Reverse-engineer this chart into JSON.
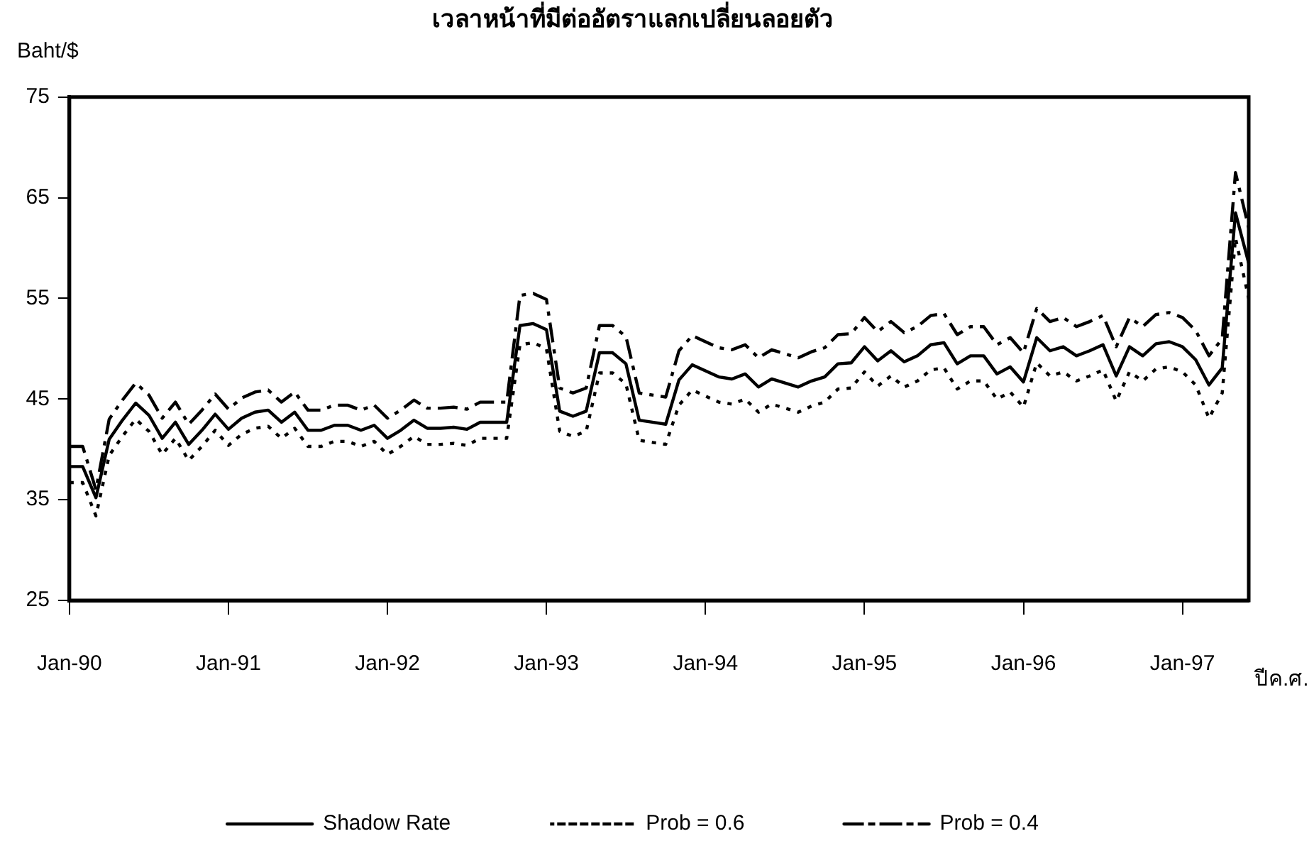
{
  "chart_data": {
    "type": "line",
    "title": "เวลาหน้าที่มีต่ออัตราแลกเปลี่ยนลอยตัว",
    "ylabel": "Baht/$",
    "xlabel": "ปีค.ศ.",
    "x": [
      "1990-01",
      "1990-02",
      "1990-03",
      "1990-04",
      "1990-05",
      "1990-06",
      "1990-07",
      "1990-08",
      "1990-09",
      "1990-10",
      "1990-11",
      "1990-12",
      "1991-01",
      "1991-02",
      "1991-03",
      "1991-04",
      "1991-05",
      "1991-06",
      "1991-07",
      "1991-08",
      "1991-09",
      "1991-10",
      "1991-11",
      "1991-12",
      "1992-01",
      "1992-02",
      "1992-03",
      "1992-04",
      "1992-05",
      "1992-06",
      "1992-07",
      "1992-08",
      "1992-09",
      "1992-10",
      "1992-11",
      "1992-12",
      "1993-01",
      "1993-02",
      "1993-03",
      "1993-04",
      "1993-05",
      "1993-06",
      "1993-07",
      "1993-08",
      "1993-09",
      "1993-10",
      "1993-11",
      "1993-12",
      "1994-01",
      "1994-02",
      "1994-03",
      "1994-04",
      "1994-05",
      "1994-06",
      "1994-07",
      "1994-08",
      "1994-09",
      "1994-10",
      "1994-11",
      "1994-12",
      "1995-01",
      "1995-02",
      "1995-03",
      "1995-04",
      "1995-05",
      "1995-06",
      "1995-07",
      "1995-08",
      "1995-09",
      "1995-10",
      "1995-11",
      "1995-12",
      "1996-01",
      "1996-02",
      "1996-03",
      "1996-04",
      "1996-05",
      "1996-06",
      "1996-07",
      "1996-08",
      "1996-09",
      "1996-10",
      "1996-11",
      "1996-12",
      "1997-01",
      "1997-02",
      "1997-03",
      "1997-04",
      "1997-05",
      "1997-06"
    ],
    "series": [
      {
        "name": "Shadow Rate",
        "color": "#000000",
        "line_style": "solid",
        "values": [
          38.3,
          38.3,
          35.2,
          41.0,
          42.9,
          44.6,
          43.4,
          41.1,
          42.7,
          40.5,
          41.9,
          43.5,
          42.0,
          43.1,
          43.7,
          43.9,
          42.7,
          43.7,
          41.9,
          41.9,
          42.4,
          42.4,
          41.9,
          42.4,
          41.1,
          41.9,
          42.9,
          42.1,
          42.1,
          42.2,
          42.0,
          42.7,
          42.7,
          42.7,
          52.3,
          52.5,
          51.9,
          43.8,
          43.3,
          43.8,
          49.6,
          49.6,
          48.5,
          42.9,
          42.7,
          42.5,
          46.9,
          48.4,
          47.8,
          47.2,
          47.0,
          47.5,
          46.2,
          47.0,
          46.6,
          46.2,
          46.8,
          47.2,
          48.5,
          48.6,
          50.2,
          48.8,
          49.8,
          48.7,
          49.3,
          50.4,
          50.6,
          48.5,
          49.3,
          49.3,
          47.5,
          48.2,
          46.7,
          51.1,
          49.8,
          50.2,
          49.3,
          49.8,
          50.4,
          47.3,
          50.2,
          49.3,
          50.5,
          50.7,
          50.2,
          48.9,
          46.4,
          48.1,
          63.5,
          58.5
        ]
      },
      {
        "name": "Prob = 0.6",
        "color": "#000000",
        "line_style": "dotted",
        "values": [
          36.7,
          36.7,
          33.4,
          39.4,
          41.3,
          43.0,
          41.8,
          39.5,
          41.1,
          38.9,
          40.3,
          41.9,
          40.4,
          41.5,
          42.1,
          42.3,
          41.1,
          42.1,
          40.3,
          40.3,
          40.8,
          40.8,
          40.3,
          40.8,
          39.5,
          40.3,
          41.3,
          40.5,
          40.5,
          40.6,
          40.4,
          41.1,
          41.1,
          41.1,
          50.4,
          50.6,
          50.0,
          41.8,
          41.3,
          41.8,
          47.6,
          47.6,
          46.5,
          40.9,
          40.7,
          40.5,
          44.4,
          45.9,
          45.3,
          44.7,
          44.5,
          45.0,
          43.7,
          44.5,
          44.1,
          43.7,
          44.3,
          44.7,
          46.0,
          46.1,
          47.7,
          46.3,
          47.3,
          46.2,
          46.8,
          47.9,
          48.1,
          46.0,
          46.8,
          46.8,
          45.0,
          45.7,
          44.2,
          48.6,
          47.3,
          47.7,
          46.8,
          47.3,
          47.9,
          44.8,
          47.7,
          46.8,
          48.0,
          48.2,
          47.7,
          46.4,
          43.1,
          45.6,
          61.0,
          55.0
        ]
      },
      {
        "name": "Prob = 0.4",
        "color": "#000000",
        "line_style": "dashed",
        "values": [
          40.3,
          40.3,
          36.0,
          43.0,
          44.9,
          46.6,
          45.4,
          43.1,
          44.7,
          42.5,
          43.9,
          45.5,
          44.0,
          45.1,
          45.7,
          45.9,
          44.7,
          45.7,
          43.9,
          43.9,
          44.4,
          44.4,
          43.9,
          44.4,
          43.1,
          43.9,
          44.9,
          44.1,
          44.1,
          44.2,
          44.0,
          44.7,
          44.7,
          44.7,
          55.3,
          55.5,
          54.9,
          46.1,
          45.6,
          46.1,
          52.3,
          52.3,
          51.2,
          45.6,
          45.4,
          45.2,
          49.8,
          51.3,
          50.7,
          50.1,
          49.9,
          50.4,
          49.1,
          49.9,
          49.5,
          49.1,
          49.7,
          50.1,
          51.4,
          51.5,
          53.1,
          51.7,
          52.7,
          51.6,
          52.2,
          53.3,
          53.5,
          51.4,
          52.2,
          52.2,
          50.4,
          51.1,
          49.6,
          54.0,
          52.7,
          53.1,
          52.2,
          52.7,
          53.3,
          50.2,
          53.1,
          52.2,
          53.4,
          53.6,
          53.1,
          51.8,
          49.3,
          51.0,
          67.5,
          62.0
        ]
      }
    ],
    "xlim": [
      "1990-01",
      "1997-06"
    ],
    "xticks": [
      {
        "value": "1990-01",
        "label": "Jan-90"
      },
      {
        "value": "1991-01",
        "label": "Jan-91"
      },
      {
        "value": "1992-01",
        "label": "Jan-92"
      },
      {
        "value": "1993-01",
        "label": "Jan-93"
      },
      {
        "value": "1994-01",
        "label": "Jan-94"
      },
      {
        "value": "1995-01",
        "label": "Jan-95"
      },
      {
        "value": "1996-01",
        "label": "Jan-96"
      },
      {
        "value": "1997-01",
        "label": "Jan-97"
      }
    ],
    "ylim": [
      25,
      75
    ],
    "yticks": [
      25,
      35,
      45,
      55,
      65,
      75
    ],
    "grid": false,
    "legend": "bottom",
    "marker": "none"
  }
}
